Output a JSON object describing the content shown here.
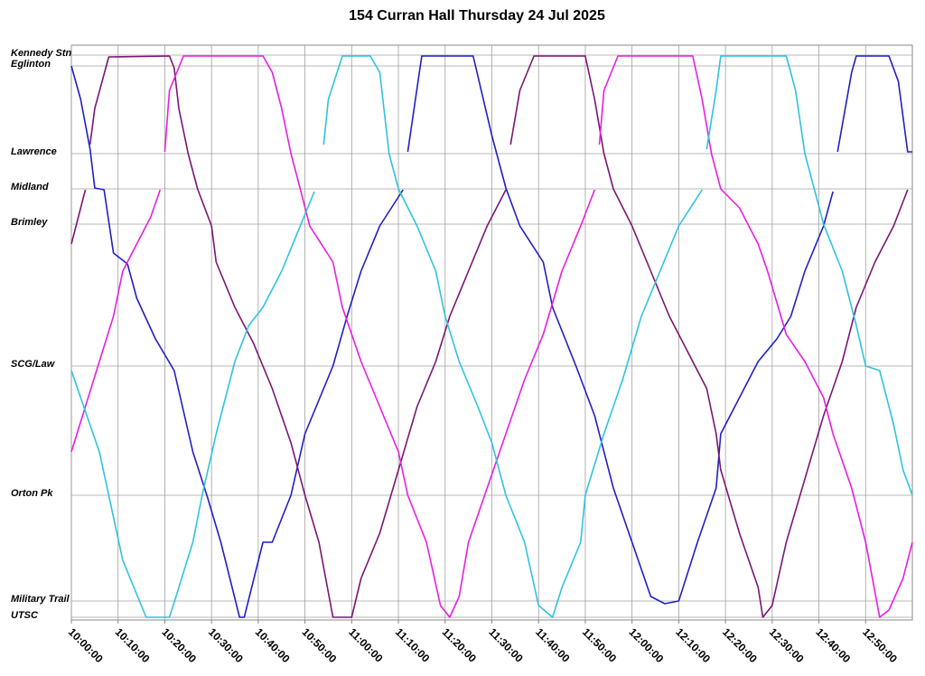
{
  "chart_data": {
    "type": "line",
    "title": "154 Curran Hall Thursday 24 Jul 2025",
    "xlim": [
      "10:00:00",
      "13:00:00"
    ],
    "xticks": [
      "10:00:00",
      "10:10:00",
      "10:20:00",
      "10:30:00",
      "10:40:00",
      "10:50:00",
      "11:00:00",
      "11:10:00",
      "11:20:00",
      "11:30:00",
      "11:40:00",
      "11:50:00",
      "12:00:00",
      "12:10:00",
      "12:20:00",
      "12:30:00",
      "12:40:00",
      "12:50:00"
    ],
    "ylim": [
      625,
      -11
    ],
    "yticks": [
      {
        "value": 0,
        "label": "Kennedy Stn"
      },
      {
        "value": 12,
        "label": "Eglinton"
      },
      {
        "value": 109,
        "label": "Lawrence"
      },
      {
        "value": 148,
        "label": "Midland"
      },
      {
        "value": 187,
        "label": "Brimley"
      },
      {
        "value": 344,
        "label": "SCG/Law"
      },
      {
        "value": 487,
        "label": "Orton Pk"
      },
      {
        "value": 604,
        "label": "Military Trail"
      },
      {
        "value": 622,
        "label": "UTSC"
      }
    ],
    "grid": true,
    "series": [
      {
        "color": "#1f1fc8",
        "x": [
          "10:00:00",
          "10:02:00",
          "10:04:00",
          "10:05:00",
          "10:07:00",
          "10:09:00",
          "10:12:00",
          "10:14:00",
          "10:18:00",
          "10:22:00",
          "10:26:00",
          "10:29:00",
          "10:32:00",
          "10:36:00",
          "10:37:00",
          "10:41:00",
          "10:43:00",
          "10:47:00",
          "10:50:00",
          "10:56:00",
          "10:59:00",
          "11:02:00",
          "11:06:00",
          "11:11:00",
          null,
          "11:12:00",
          "11:15:00",
          "11:26:00",
          "11:30:00",
          "11:33:00",
          "11:36:00",
          "11:41:00",
          "11:43:00",
          "11:48:00",
          "11:52:00",
          "11:56:00",
          "12:00:00",
          "12:04:00",
          "12:07:00",
          "12:10:00",
          "12:14:00",
          "12:18:00",
          "12:19:00",
          "12:23:00",
          "12:27:00",
          "12:31:00",
          "12:34:00",
          "12:37:00",
          "12:41:00",
          "12:43:00",
          null,
          "12:44:00",
          "12:47:00",
          "12:48:00",
          "12:55:00",
          "12:57:00",
          "12:59:00",
          "13:00:00"
        ],
        "values": [
          12,
          49,
          104,
          147,
          149,
          219,
          231,
          269,
          314,
          349,
          439,
          487,
          539,
          622,
          622,
          539,
          539,
          487,
          419,
          344,
          289,
          239,
          189,
          149,
          null,
          107,
          1,
          1,
          89,
          147,
          189,
          229,
          279,
          344,
          399,
          479,
          539,
          599,
          607,
          604,
          539,
          479,
          419,
          379,
          339,
          314,
          289,
          239,
          189,
          151,
          null,
          107,
          19,
          1,
          1,
          29,
          107,
          107
        ]
      },
      {
        "color": "#7a1675",
        "x": [
          "10:00:00",
          "10:01:00",
          "10:03:00",
          null,
          "10:04:00",
          "10:05:00",
          "10:08:00",
          "10:21:00",
          "10:22:00",
          "10:23:00",
          "10:25:00",
          "10:27:00",
          "10:30:00",
          "10:31:00",
          "10:35:00",
          "10:39:00",
          "10:43:00",
          "10:47:00",
          "10:50:00",
          "10:53:00",
          "10:56:00",
          "11:00:00",
          "11:02:00",
          "11:06:00",
          "11:10:00",
          "11:14:00",
          "11:18:00",
          "11:21:00",
          "11:25:00",
          "11:29:00",
          "11:33:00",
          null,
          "11:34:00",
          "11:36:00",
          "11:39:00",
          "11:50:00",
          "11:52:00",
          "11:54:00",
          "11:56:00",
          "12:00:00",
          "12:04:00",
          "12:08:00",
          "12:12:00",
          "12:16:00",
          "12:18:00",
          "12:19:00",
          "12:23:00",
          "12:27:00",
          "12:28:00",
          "12:30:00",
          "12:33:00",
          "12:37:00",
          "12:41:00",
          "12:45:00",
          "12:48:00",
          "12:52:00",
          "12:56:00",
          "12:59:00"
        ],
        "values": [
          209,
          189,
          149,
          null,
          99,
          59,
          2,
          1,
          14,
          59,
          109,
          148,
          189,
          229,
          279,
          319,
          369,
          429,
          487,
          539,
          622,
          622,
          579,
          529,
          459,
          389,
          339,
          289,
          239,
          189,
          149,
          null,
          99,
          39,
          1,
          1,
          49,
          109,
          148,
          189,
          239,
          289,
          329,
          369,
          419,
          459,
          529,
          589,
          622,
          609,
          539,
          469,
          399,
          339,
          279,
          229,
          189,
          149
        ]
      },
      {
        "color": "#e81ee0",
        "x": [
          "10:00:00",
          "10:03:00",
          "10:06:00",
          "10:09:00",
          "10:11:00",
          "10:14:00",
          "10:17:00",
          "10:19:00",
          null,
          "10:20:00",
          "10:21:00",
          "10:24:00",
          "10:41:00",
          "10:43:00",
          "10:45:00",
          "10:47:00",
          "10:49:00",
          "10:51:00",
          "10:56:00",
          "10:58:00",
          "11:02:00",
          "11:06:00",
          "11:10:00",
          "11:12:00",
          "11:16:00",
          "11:19:00",
          "11:21:00",
          "11:23:00",
          "11:25:00",
          "11:29:00",
          "11:33:00",
          "11:37:00",
          "11:41:00",
          "11:45:00",
          "11:49:00",
          "11:52:00",
          null,
          "11:53:00",
          "11:54:00",
          "11:57:00",
          "12:13:00",
          "12:15:00",
          "12:17:00",
          "12:19:00",
          "12:23:00",
          "12:27:00",
          "12:29:00",
          "12:33:00",
          "12:37:00",
          "12:41:00",
          "12:43:00",
          "12:47:00",
          "12:50:00",
          "12:53:00",
          "12:55:00",
          "12:58:00",
          "13:00:00"
        ],
        "values": [
          439,
          389,
          339,
          289,
          239,
          209,
          179,
          149,
          null,
          107,
          39,
          1,
          1,
          19,
          59,
          109,
          148,
          189,
          229,
          279,
          339,
          389,
          439,
          487,
          539,
          609,
          622,
          599,
          539,
          479,
          419,
          359,
          309,
          239,
          189,
          149,
          null,
          99,
          39,
          1,
          1,
          49,
          109,
          148,
          169,
          209,
          239,
          309,
          339,
          379,
          419,
          479,
          539,
          622,
          614,
          579,
          539
        ]
      },
      {
        "color": "#2ec4dc",
        "x": [
          "10:00:00",
          "10:02:00",
          "10:06:00",
          "10:08:00",
          "10:11:00",
          "10:16:00",
          "10:21:00",
          "10:23:00",
          "10:26:00",
          "10:28:00",
          "10:31:00",
          "10:35:00",
          "10:38:00",
          "10:41:00",
          "10:45:00",
          "10:49:00",
          "10:52:00",
          null,
          "10:54:00",
          "10:55:00",
          "10:58:00",
          "11:04:00",
          "11:06:00",
          "11:08:00",
          "11:10:00",
          "11:14:00",
          "11:18:00",
          "11:20:00",
          "11:23:00",
          "11:27:00",
          "11:30:00",
          "11:33:00",
          "11:37:00",
          "11:40:00",
          "11:43:00",
          "11:45:00",
          "11:49:00",
          "11:50:00",
          "11:54:00",
          "11:58:00",
          "12:02:00",
          "12:06:00",
          "12:10:00",
          "12:15:00",
          null,
          "12:16:00",
          "12:18:00",
          "12:19:00",
          "12:33:00",
          "12:35:00",
          "12:37:00",
          "12:39:00",
          "12:41:00",
          "12:45:00",
          "12:48:00",
          "12:50:00",
          "12:53:00",
          "12:56:00",
          "12:58:00",
          "13:00:00"
        ],
        "values": [
          349,
          379,
          439,
          487,
          559,
          622,
          622,
          589,
          539,
          487,
          419,
          339,
          299,
          279,
          239,
          189,
          151,
          null,
          99,
          49,
          1,
          1,
          19,
          109,
          148,
          189,
          239,
          289,
          339,
          389,
          429,
          487,
          539,
          609,
          622,
          589,
          539,
          487,
          419,
          359,
          289,
          239,
          189,
          149,
          null,
          104,
          39,
          1,
          1,
          39,
          109,
          148,
          187,
          239,
          299,
          344,
          349,
          409,
          459,
          487
        ]
      }
    ]
  }
}
